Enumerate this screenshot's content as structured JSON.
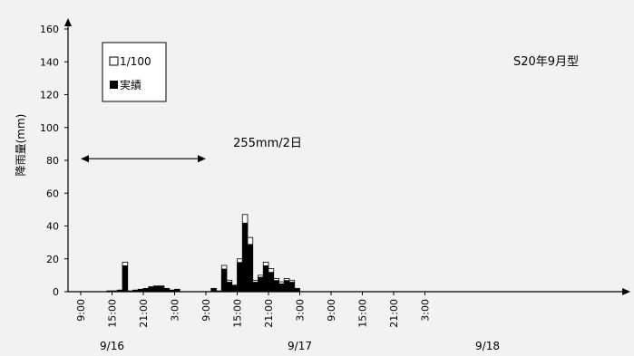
{
  "chart_data": {
    "type": "bar",
    "ylabel": "降雨量(mm)",
    "ylim": [
      0,
      160
    ],
    "yticks": [
      0,
      20,
      40,
      60,
      80,
      100,
      120,
      140,
      160
    ],
    "title_right": "S20年9月型",
    "legend": [
      {
        "symbol": "□",
        "label": "1/100",
        "color": "#ffffff"
      },
      {
        "symbol": "■",
        "label": "実績",
        "color": "#000000"
      }
    ],
    "legend_position": "top-left",
    "annotation": {
      "text": "255mm/2日",
      "x_start": "9/16 9:00",
      "x_end": "9/17 9:00",
      "y": 81
    },
    "xtick_labels": [
      "9:00",
      "15:00",
      "21:00",
      "3:00",
      "9:00",
      "15:00",
      "21:00",
      "3:00",
      "9:00",
      "15:00",
      "21:00",
      "3:00"
    ],
    "date_labels": [
      "9/16",
      "9/17",
      "9/18"
    ],
    "x_start": "9/16 9:00",
    "x_end": "9/18 15:00",
    "series": [
      {
        "name": "実績",
        "hours": [
          {
            "t": "9/16 14:00",
            "v": 0.5
          },
          {
            "t": "9/16 15:00",
            "v": 0.5
          },
          {
            "t": "9/16 16:00",
            "v": 1
          },
          {
            "t": "9/16 17:00",
            "v": 16
          },
          {
            "t": "9/16 18:00",
            "v": 0.5
          },
          {
            "t": "9/16 19:00",
            "v": 1
          },
          {
            "t": "9/16 20:00",
            "v": 1.5
          },
          {
            "t": "9/16 21:00",
            "v": 2
          },
          {
            "t": "9/16 22:00",
            "v": 3
          },
          {
            "t": "9/16 23:00",
            "v": 3.5
          },
          {
            "t": "9/17 0:00",
            "v": 3.5
          },
          {
            "t": "9/17 1:00",
            "v": 2
          },
          {
            "t": "9/17 2:00",
            "v": 1
          },
          {
            "t": "9/17 3:00",
            "v": 1.5
          },
          {
            "t": "9/17 10:00",
            "v": 2
          },
          {
            "t": "9/17 11:00",
            "v": 0.5
          },
          {
            "t": "9/17 12:00",
            "v": 14
          },
          {
            "t": "9/17 13:00",
            "v": 6
          },
          {
            "t": "9/17 14:00",
            "v": 4
          },
          {
            "t": "9/17 15:00",
            "v": 18
          },
          {
            "t": "9/17 16:00",
            "v": 42
          },
          {
            "t": "9/17 17:00",
            "v": 29
          },
          {
            "t": "9/17 18:00",
            "v": 6
          },
          {
            "t": "9/17 19:00",
            "v": 9
          },
          {
            "t": "9/17 20:00",
            "v": 16
          },
          {
            "t": "9/17 21:00",
            "v": 12
          },
          {
            "t": "9/17 22:00",
            "v": 7
          },
          {
            "t": "9/17 23:00",
            "v": 5
          },
          {
            "t": "9/18 0:00",
            "v": 7
          },
          {
            "t": "9/18 1:00",
            "v": 6
          },
          {
            "t": "9/18 2:00",
            "v": 2
          }
        ]
      },
      {
        "name": "1/100",
        "hours": [
          {
            "t": "9/16 14:00",
            "v": 0.5
          },
          {
            "t": "9/16 15:00",
            "v": 0.5
          },
          {
            "t": "9/16 16:00",
            "v": 1
          },
          {
            "t": "9/16 17:00",
            "v": 18
          },
          {
            "t": "9/16 18:00",
            "v": 0.5
          },
          {
            "t": "9/16 19:00",
            "v": 1
          },
          {
            "t": "9/16 20:00",
            "v": 1.5
          },
          {
            "t": "9/16 21:00",
            "v": 2
          },
          {
            "t": "9/16 22:00",
            "v": 3
          },
          {
            "t": "9/16 23:00",
            "v": 3.5
          },
          {
            "t": "9/17 0:00",
            "v": 3.5
          },
          {
            "t": "9/17 1:00",
            "v": 2
          },
          {
            "t": "9/17 2:00",
            "v": 1
          },
          {
            "t": "9/17 3:00",
            "v": 1.5
          },
          {
            "t": "9/17 10:00",
            "v": 2
          },
          {
            "t": "9/17 11:00",
            "v": 0.5
          },
          {
            "t": "9/17 12:00",
            "v": 16
          },
          {
            "t": "9/17 13:00",
            "v": 7
          },
          {
            "t": "9/17 14:00",
            "v": 4
          },
          {
            "t": "9/17 15:00",
            "v": 20
          },
          {
            "t": "9/17 16:00",
            "v": 47
          },
          {
            "t": "9/17 17:00",
            "v": 33
          },
          {
            "t": "9/17 18:00",
            "v": 7
          },
          {
            "t": "9/17 19:00",
            "v": 10
          },
          {
            "t": "9/17 20:00",
            "v": 18
          },
          {
            "t": "9/17 21:00",
            "v": 14
          },
          {
            "t": "9/17 22:00",
            "v": 8
          },
          {
            "t": "9/17 23:00",
            "v": 6
          },
          {
            "t": "9/18 0:00",
            "v": 8
          },
          {
            "t": "9/18 1:00",
            "v": 7
          },
          {
            "t": "9/18 2:00",
            "v": 2
          }
        ]
      }
    ]
  }
}
